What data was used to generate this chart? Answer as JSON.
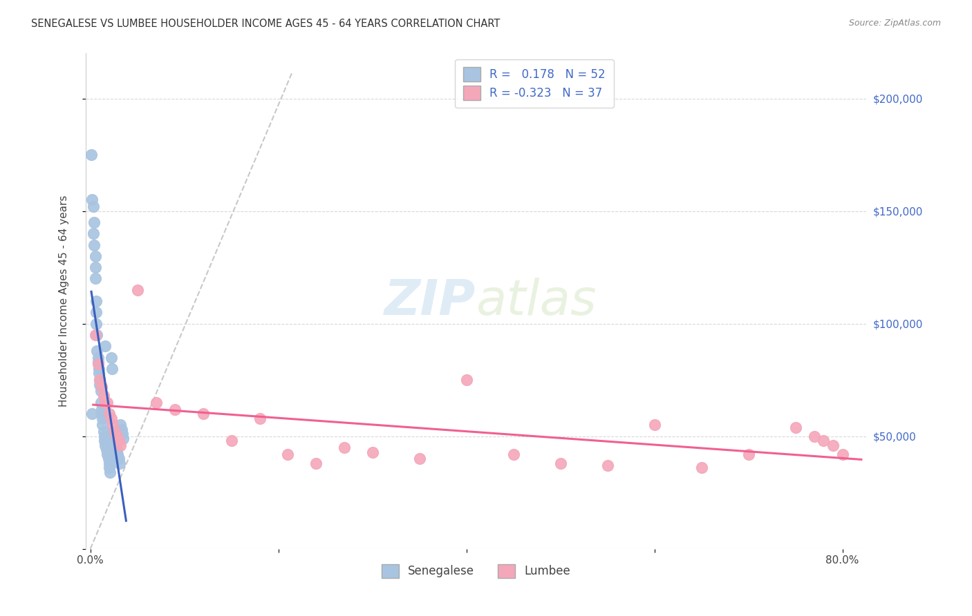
{
  "title": "SENEGALESE VS LUMBEE HOUSEHOLDER INCOME AGES 45 - 64 YEARS CORRELATION CHART",
  "source": "Source: ZipAtlas.com",
  "ylabel": "Householder Income Ages 45 - 64 years",
  "xlim": [
    -0.005,
    0.825
  ],
  "ylim": [
    0,
    220000
  ],
  "xticks": [
    0.0,
    0.2,
    0.4,
    0.6,
    0.8
  ],
  "xticklabels": [
    "0.0%",
    "",
    "",
    "",
    "80.0%"
  ],
  "yticks": [
    0,
    50000,
    100000,
    150000,
    200000
  ],
  "yticklabels": [
    "",
    "$50,000",
    "$100,000",
    "$150,000",
    "$200,000"
  ],
  "senegalese_R": 0.178,
  "senegalese_N": 52,
  "lumbee_R": -0.323,
  "lumbee_N": 37,
  "senegalese_color": "#a8c4e0",
  "lumbee_color": "#f4a7b9",
  "senegalese_line_color": "#3a5fbf",
  "lumbee_line_color": "#f06090",
  "ref_line_color": "#c8c8c8",
  "background_color": "#ffffff",
  "watermark_zip": "ZIP",
  "watermark_atlas": "atlas",
  "senegalese_x": [
    0.001,
    0.002,
    0.002,
    0.003,
    0.003,
    0.004,
    0.004,
    0.005,
    0.005,
    0.005,
    0.006,
    0.006,
    0.006,
    0.007,
    0.007,
    0.008,
    0.008,
    0.009,
    0.009,
    0.01,
    0.01,
    0.011,
    0.011,
    0.012,
    0.012,
    0.013,
    0.013,
    0.014,
    0.015,
    0.015,
    0.016,
    0.016,
    0.017,
    0.018,
    0.019,
    0.02,
    0.02,
    0.021,
    0.022,
    0.023,
    0.024,
    0.025,
    0.026,
    0.027,
    0.028,
    0.029,
    0.03,
    0.031,
    0.032,
    0.033,
    0.034,
    0.035
  ],
  "senegalese_y": [
    175000,
    155000,
    60000,
    152000,
    140000,
    145000,
    135000,
    130000,
    125000,
    120000,
    110000,
    105000,
    100000,
    95000,
    88000,
    85000,
    83000,
    80000,
    78000,
    75000,
    73000,
    70000,
    65000,
    62000,
    60000,
    58000,
    55000,
    52000,
    50000,
    48000,
    46000,
    90000,
    44000,
    42000,
    40000,
    38000,
    36000,
    34000,
    85000,
    80000,
    52000,
    50000,
    48000,
    46000,
    44000,
    42000,
    40000,
    38000,
    55000,
    53000,
    51000,
    49000
  ],
  "lumbee_x": [
    0.005,
    0.008,
    0.01,
    0.012,
    0.014,
    0.016,
    0.018,
    0.02,
    0.022,
    0.024,
    0.026,
    0.028,
    0.03,
    0.032,
    0.05,
    0.07,
    0.09,
    0.12,
    0.15,
    0.18,
    0.21,
    0.24,
    0.27,
    0.3,
    0.35,
    0.4,
    0.45,
    0.5,
    0.55,
    0.6,
    0.65,
    0.7,
    0.75,
    0.77,
    0.78,
    0.79,
    0.8
  ],
  "lumbee_y": [
    95000,
    82000,
    75000,
    72000,
    68000,
    65000,
    65000,
    60000,
    58000,
    55000,
    52000,
    50000,
    48000,
    46000,
    115000,
    65000,
    62000,
    60000,
    48000,
    58000,
    42000,
    38000,
    45000,
    43000,
    40000,
    75000,
    42000,
    38000,
    37000,
    55000,
    36000,
    42000,
    54000,
    50000,
    48000,
    46000,
    42000
  ]
}
